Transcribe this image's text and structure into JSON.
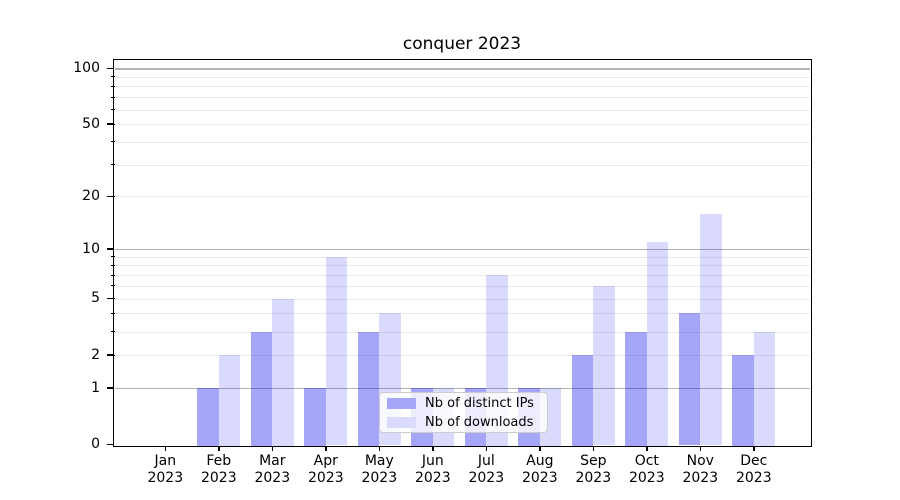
{
  "chart_data": {
    "type": "bar",
    "title": "conquer 2023",
    "categories": [
      "Jan",
      "Feb",
      "Mar",
      "Apr",
      "May",
      "Jun",
      "Jul",
      "Aug",
      "Sep",
      "Oct",
      "Nov",
      "Dec"
    ],
    "category_year": "2023",
    "series": [
      {
        "name": "Nb of distinct IPs",
        "swatch_color": "#a6a6f8",
        "fill_color": "rgba(0,0,235,0.35)",
        "values": [
          0,
          1,
          3,
          1,
          3,
          1,
          1,
          1,
          2,
          3,
          4,
          2
        ]
      },
      {
        "name": "Nb of downloads",
        "swatch_color": "#dadafc",
        "fill_color": "rgba(0,0,235,0.145)",
        "values": [
          0,
          2,
          5,
          9,
          4,
          1,
          7,
          1,
          6,
          11,
          16,
          3
        ]
      }
    ],
    "xlabel": "",
    "ylabel": "",
    "y_scale": "log10(1+y)",
    "ylim": [
      0,
      111
    ],
    "y_tick_labels": [
      0,
      1,
      2,
      5,
      10,
      20,
      50,
      100
    ],
    "grid": {
      "on": true,
      "major_values": [
        1,
        10,
        100
      ],
      "minor_values": [
        2,
        3,
        4,
        5,
        6,
        7,
        8,
        9,
        20,
        30,
        40,
        50,
        60,
        70,
        80,
        90
      ],
      "major_color": "#b3b3b3",
      "minor_color": "#eaeaea"
    },
    "legend_position": "lower center"
  }
}
